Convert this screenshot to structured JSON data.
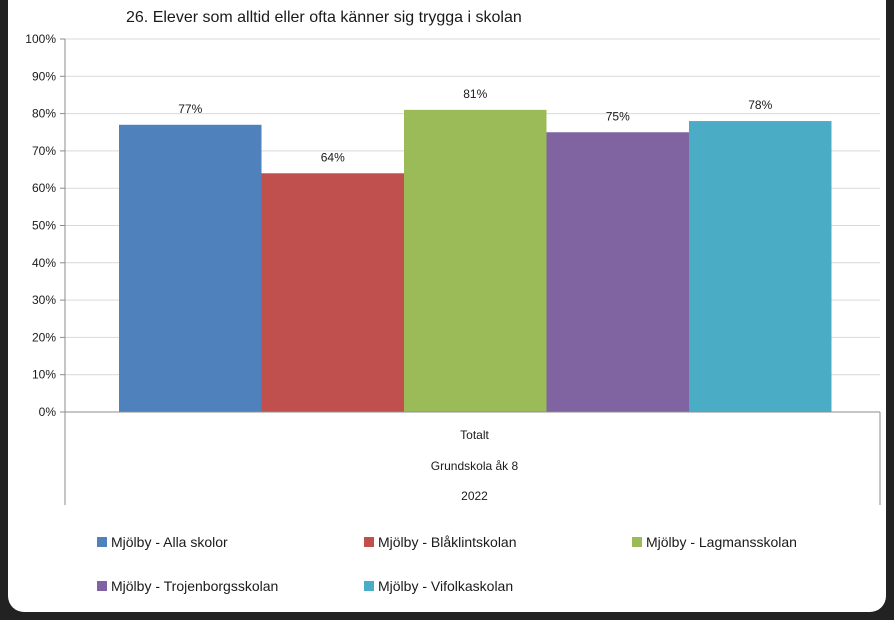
{
  "chart_data": {
    "type": "bar",
    "title": "26. Elever som alltid eller ofta känner sig trygga i skolan",
    "categories": [
      "Totalt"
    ],
    "category_levels": [
      "Totalt",
      "Grundskola åk 8",
      "2022"
    ],
    "y_ticks": [
      "0%",
      "10%",
      "20%",
      "30%",
      "40%",
      "50%",
      "60%",
      "70%",
      "80%",
      "90%",
      "100%"
    ],
    "ylim": [
      0,
      100
    ],
    "grid": true,
    "legend_position": "bottom",
    "series": [
      {
        "name": "Mjölby - Alla skolor",
        "values": [
          77
        ],
        "label": "77%",
        "color": "#4f81bd"
      },
      {
        "name": "Mjölby - Blåklintskolan",
        "values": [
          64
        ],
        "label": "64%",
        "color": "#c0504d"
      },
      {
        "name": "Mjölby - Lagmansskolan",
        "values": [
          81
        ],
        "label": "81%",
        "color": "#9bbb59"
      },
      {
        "name": "Mjölby - Trojenborgsskolan",
        "values": [
          75
        ],
        "label": "75%",
        "color": "#8064a2"
      },
      {
        "name": "Mjölby - Vifolkaskolan",
        "values": [
          78
        ],
        "label": "78%",
        "color": "#4bacc6"
      }
    ]
  }
}
